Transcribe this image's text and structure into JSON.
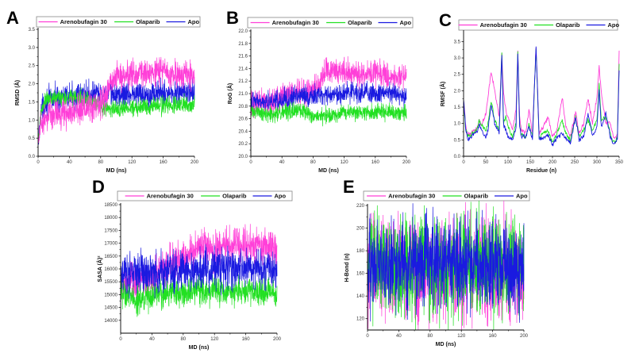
{
  "figure": {
    "colors": {
      "Arenobufagin 30": "#ff3fd8",
      "Olaparib": "#22e022",
      "Apo": "#1a1ae0"
    },
    "legend_labels": [
      "Arenobufagin 30",
      "Olaparib",
      "Apo"
    ]
  },
  "chart_data": [
    {
      "panel": "A",
      "type": "line",
      "title": "",
      "xlabel": "MD (ns)",
      "ylabel": "RMSD (Å)",
      "xlim": [
        0,
        200
      ],
      "ylim": [
        0,
        3.5
      ],
      "xticks": [
        0,
        40,
        80,
        120,
        160,
        200
      ],
      "yticks": [
        0.0,
        0.5,
        1.0,
        1.5,
        2.0,
        2.5,
        3.0,
        3.5
      ],
      "ytick_labels": [
        "0.0",
        "0.5",
        "1.0",
        "1.5",
        "2.0",
        "2.5",
        "3.0",
        "3.5"
      ],
      "legend": "top",
      "series": [
        {
          "name": "Apo",
          "x": [
            0,
            10,
            20,
            40,
            60,
            80,
            100,
            120,
            140,
            160,
            180,
            200
          ],
          "mean": [
            1.0,
            1.55,
            1.6,
            1.62,
            1.7,
            1.7,
            1.7,
            1.72,
            1.72,
            1.75,
            1.75,
            1.75
          ],
          "noise": 0.22
        },
        {
          "name": "Olaparib",
          "x": [
            0,
            10,
            20,
            40,
            60,
            80,
            100,
            120,
            140,
            160,
            180,
            200
          ],
          "mean": [
            1.0,
            1.55,
            1.6,
            1.65,
            1.6,
            1.35,
            1.3,
            1.35,
            1.4,
            1.4,
            1.42,
            1.42
          ],
          "noise": 0.15
        },
        {
          "name": "Arenobufagin 30",
          "x": [
            0,
            10,
            20,
            40,
            60,
            80,
            100,
            120,
            140,
            160,
            180,
            200
          ],
          "mean": [
            0.9,
            1.05,
            1.15,
            1.2,
            1.3,
            1.45,
            2.2,
            2.25,
            2.3,
            2.3,
            2.25,
            2.2
          ],
          "noise": 0.25
        }
      ]
    },
    {
      "panel": "B",
      "type": "line",
      "title": "",
      "xlabel": "MD (ns)",
      "ylabel": "RoG (Å)",
      "xlim": [
        0,
        200
      ],
      "ylim": [
        20.0,
        22.0
      ],
      "xticks": [
        0,
        40,
        80,
        120,
        160,
        200
      ],
      "yticks": [
        20.0,
        20.2,
        20.4,
        20.6,
        20.8,
        21.0,
        21.2,
        21.4,
        21.6,
        21.8,
        22.0
      ],
      "ytick_labels": [
        "20.0",
        "20.2",
        "20.4",
        "20.6",
        "20.8",
        "21.0",
        "21.2",
        "21.4",
        "21.6",
        "21.8",
        "22.0"
      ],
      "legend": "top",
      "series": [
        {
          "name": "Arenobufagin 30",
          "x": [
            0,
            20,
            40,
            60,
            80,
            100,
            120,
            140,
            160,
            180,
            200
          ],
          "mean": [
            20.85,
            20.85,
            20.95,
            21.0,
            21.05,
            21.4,
            21.35,
            21.3,
            21.35,
            21.25,
            21.25
          ],
          "noise": 0.13
        },
        {
          "name": "Apo",
          "x": [
            0,
            20,
            40,
            60,
            80,
            100,
            120,
            140,
            160,
            180,
            200
          ],
          "mean": [
            20.9,
            20.85,
            20.9,
            20.95,
            20.95,
            21.0,
            21.0,
            21.0,
            21.0,
            21.0,
            20.95
          ],
          "noise": 0.1
        },
        {
          "name": "Olaparib",
          "x": [
            0,
            20,
            40,
            60,
            80,
            100,
            120,
            140,
            160,
            180,
            200
          ],
          "mean": [
            20.75,
            20.65,
            20.7,
            20.75,
            20.65,
            20.65,
            20.7,
            20.7,
            20.7,
            20.7,
            20.7
          ],
          "noise": 0.08
        }
      ]
    },
    {
      "panel": "C",
      "type": "line",
      "title": "",
      "xlabel": "Residue (n)",
      "ylabel": "RMSF (Å)",
      "xlim": [
        0,
        350
      ],
      "ylim": [
        0,
        3.8
      ],
      "xticks": [
        0,
        50,
        100,
        150,
        200,
        250,
        300,
        350
      ],
      "yticks": [
        0.0,
        0.5,
        1.0,
        1.5,
        2.0,
        2.5,
        3.0,
        3.5
      ],
      "ytick_labels": [
        "0.0",
        "0.5",
        "1.0",
        "1.5",
        "2.0",
        "2.5",
        "3.0",
        "3.5"
      ],
      "legend": "top",
      "series": [
        {
          "name": "Arenobufagin 30",
          "x": [
            0,
            5,
            10,
            20,
            30,
            35,
            40,
            50,
            55,
            62,
            70,
            80,
            86,
            90,
            95,
            100,
            110,
            118,
            122,
            126,
            130,
            140,
            147,
            155,
            163,
            170,
            180,
            190,
            200,
            210,
            222,
            230,
            240,
            252,
            260,
            270,
            280,
            290,
            300,
            305,
            310,
            320,
            330,
            335,
            340,
            346,
            350
          ],
          "y": [
            1.7,
            0.9,
            0.65,
            0.75,
            0.85,
            1.1,
            0.95,
            1.3,
            1.8,
            2.6,
            2.0,
            1.2,
            3.1,
            1.9,
            1.4,
            1.2,
            0.8,
            1.4,
            3.2,
            1.2,
            0.8,
            0.7,
            1.4,
            0.7,
            3.35,
            0.7,
            0.9,
            1.2,
            0.6,
            0.8,
            1.8,
            0.9,
            0.6,
            1.35,
            0.7,
            1.0,
            1.75,
            1.0,
            1.8,
            2.75,
            1.9,
            1.0,
            1.0,
            0.7,
            0.5,
            0.7,
            3.2
          ]
        },
        {
          "name": "Olaparib",
          "x": [
            0,
            5,
            10,
            20,
            30,
            35,
            40,
            50,
            55,
            62,
            70,
            80,
            86,
            90,
            95,
            100,
            110,
            118,
            122,
            126,
            130,
            140,
            147,
            155,
            163,
            170,
            180,
            190,
            200,
            210,
            222,
            230,
            240,
            252,
            260,
            270,
            280,
            290,
            300,
            305,
            310,
            320,
            330,
            335,
            340,
            346,
            350
          ],
          "y": [
            1.6,
            0.8,
            0.6,
            0.7,
            0.8,
            1.1,
            0.95,
            0.8,
            1.0,
            1.7,
            1.1,
            0.8,
            3.15,
            1.0,
            1.2,
            0.9,
            0.6,
            1.0,
            3.2,
            1.0,
            0.65,
            0.6,
            1.0,
            0.6,
            3.3,
            0.6,
            0.7,
            0.8,
            0.4,
            0.7,
            1.1,
            0.7,
            0.5,
            1.2,
            0.6,
            0.8,
            1.1,
            0.8,
            1.1,
            2.2,
            1.1,
            1.2,
            0.7,
            0.5,
            0.4,
            0.6,
            2.8
          ]
        },
        {
          "name": "Apo",
          "x": [
            0,
            5,
            10,
            20,
            30,
            35,
            40,
            50,
            55,
            62,
            70,
            80,
            86,
            90,
            95,
            100,
            110,
            118,
            122,
            126,
            130,
            140,
            147,
            155,
            163,
            170,
            180,
            190,
            200,
            210,
            222,
            230,
            240,
            252,
            260,
            270,
            280,
            290,
            300,
            305,
            310,
            320,
            330,
            335,
            340,
            346,
            350
          ],
          "y": [
            1.75,
            0.8,
            0.5,
            0.65,
            0.75,
            0.95,
            0.85,
            0.55,
            0.8,
            1.6,
            1.0,
            0.7,
            3.1,
            0.95,
            0.8,
            0.6,
            0.5,
            0.9,
            3.15,
            0.9,
            0.6,
            0.6,
            0.9,
            0.55,
            3.35,
            0.55,
            0.55,
            0.65,
            0.35,
            0.55,
            0.7,
            0.55,
            0.4,
            1.2,
            0.5,
            0.6,
            1.3,
            0.6,
            0.9,
            2.0,
            0.9,
            1.3,
            0.6,
            0.45,
            0.4,
            0.5,
            2.6
          ]
        }
      ]
    },
    {
      "panel": "D",
      "type": "line",
      "title": "",
      "xlabel": "MD (ns)",
      "ylabel": "SASA (Å)²",
      "xlim": [
        0,
        200
      ],
      "ylim": [
        13500,
        18500
      ],
      "xticks": [
        0,
        40,
        80,
        120,
        160,
        200
      ],
      "yticks": [
        14000,
        14500,
        15000,
        15500,
        16000,
        16500,
        17000,
        17500,
        18000,
        18500
      ],
      "ytick_labels": [
        "14000",
        "14500",
        "15000",
        "15500",
        "16000",
        "16500",
        "17000",
        "17500",
        "18000",
        "18500"
      ],
      "legend": "top",
      "series": [
        {
          "name": "Arenobufagin 30",
          "x": [
            0,
            20,
            40,
            60,
            80,
            100,
            120,
            140,
            160,
            180,
            200
          ],
          "mean": [
            15400,
            15500,
            15700,
            16100,
            16400,
            16900,
            16800,
            16900,
            17000,
            16900,
            16800
          ],
          "noise": 450
        },
        {
          "name": "Olaparib",
          "x": [
            0,
            20,
            40,
            60,
            80,
            100,
            120,
            140,
            160,
            180,
            200
          ],
          "mean": [
            15200,
            14800,
            15000,
            15100,
            15100,
            15200,
            15200,
            15100,
            15200,
            15100,
            15100
          ],
          "noise": 350
        },
        {
          "name": "Apo",
          "x": [
            0,
            20,
            40,
            60,
            80,
            100,
            120,
            140,
            160,
            180,
            200
          ],
          "mean": [
            15800,
            15900,
            15900,
            15900,
            15900,
            15950,
            16000,
            16000,
            16000,
            16000,
            15950
          ],
          "noise": 480
        }
      ]
    },
    {
      "panel": "E",
      "type": "line",
      "title": "",
      "xlabel": "MD (ns)",
      "ylabel": "H-Bond (n)",
      "xlim": [
        0,
        200
      ],
      "ylim": [
        110,
        220
      ],
      "xticks": [
        0,
        40,
        80,
        120,
        160,
        200
      ],
      "yticks": [
        120,
        140,
        160,
        180,
        200,
        220
      ],
      "ytick_labels": [
        "120",
        "140",
        "160",
        "180",
        "200",
        "220"
      ],
      "legend": "top",
      "series": [
        {
          "name": "Arenobufagin 30",
          "x": [
            0,
            20,
            40,
            60,
            80,
            100,
            120,
            140,
            160,
            180,
            200
          ],
          "mean": [
            165,
            165,
            165,
            163,
            162,
            162,
            163,
            164,
            163,
            163,
            164
          ],
          "noise": 28
        },
        {
          "name": "Olaparib",
          "x": [
            0,
            20,
            40,
            60,
            80,
            100,
            120,
            140,
            160,
            180,
            200
          ],
          "mean": [
            167,
            168,
            168,
            167,
            167,
            167,
            167,
            168,
            168,
            168,
            168
          ],
          "noise": 27
        },
        {
          "name": "Apo",
          "x": [
            0,
            20,
            40,
            60,
            80,
            100,
            120,
            140,
            160,
            180,
            200
          ],
          "mean": [
            166,
            166,
            167,
            167,
            168,
            168,
            167,
            168,
            167,
            168,
            167
          ],
          "noise": 25
        }
      ]
    }
  ],
  "panel_letters": [
    "A",
    "B",
    "C",
    "D",
    "E"
  ]
}
